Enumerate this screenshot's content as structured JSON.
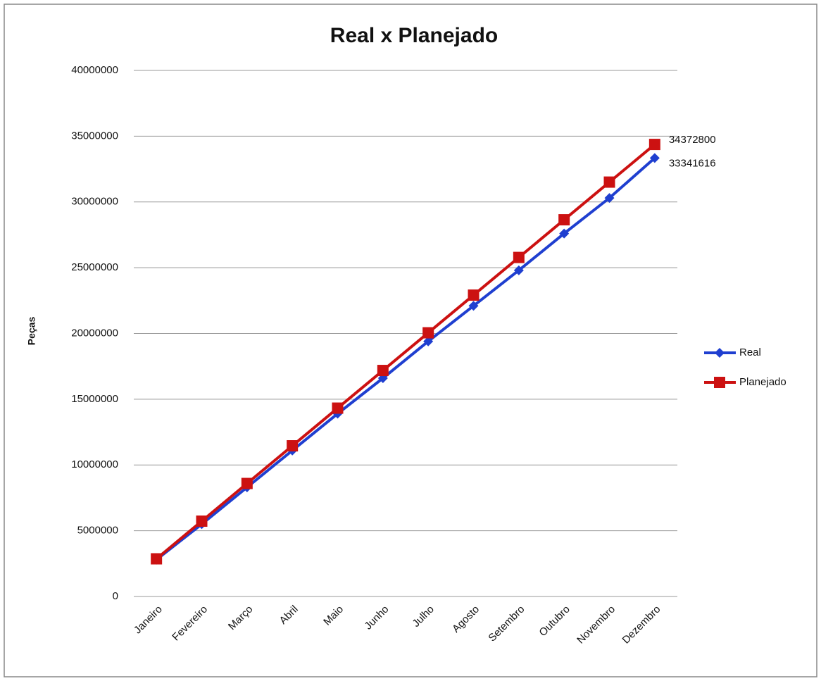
{
  "chart_data": {
    "type": "line",
    "title": "Real x Planejado",
    "y_label": "Peças",
    "categories": [
      "Janeiro",
      "Fevereiro",
      "Março",
      "Abril",
      "Maio",
      "Junho",
      "Julho",
      "Agosto",
      "Setembro",
      "Outubro",
      "Novembro",
      "Dezembro"
    ],
    "series": [
      {
        "name": "Real",
        "color": "#1f3fd0",
        "marker": "diamond",
        "values": [
          2800000,
          5500000,
          8300000,
          11100000,
          13900000,
          16600000,
          19400000,
          22100000,
          24800000,
          27600000,
          30300000,
          33341616
        ]
      },
      {
        "name": "Planejado",
        "color": "#cc1111",
        "marker": "square",
        "values": [
          2864400,
          5728800,
          8593200,
          11457600,
          14322000,
          17186400,
          20050800,
          22915200,
          25779600,
          28644000,
          31508400,
          34372800
        ]
      }
    ],
    "ylim": [
      0,
      40000000
    ],
    "yticks": [
      0,
      5000000,
      10000000,
      15000000,
      20000000,
      25000000,
      30000000,
      35000000,
      40000000
    ],
    "grid": true,
    "legend": "right"
  }
}
